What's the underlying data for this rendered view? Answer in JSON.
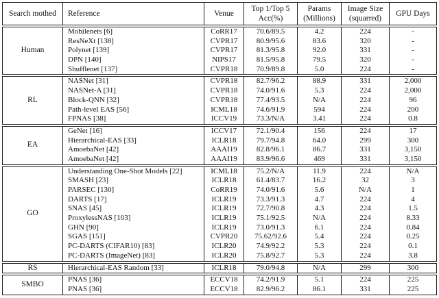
{
  "table": {
    "columns": [
      {
        "label": "Search mothed"
      },
      {
        "label": "Reference"
      },
      {
        "label": "Venue"
      },
      {
        "label": "Top 1/Top 5\nAcc(%)"
      },
      {
        "label": "Params\n(Millions)"
      },
      {
        "label": "Image Size\n(squarred)"
      },
      {
        "label": "GPU Days"
      }
    ],
    "sections": [
      {
        "method": "Human",
        "rows": [
          [
            "Mobilenets [6]",
            "CoRR17",
            "70.6/89.5",
            "4.2",
            "224",
            "-"
          ],
          [
            "ResNeXt [138]",
            "CVPR17",
            "80.9/95.6",
            "83.6",
            "320",
            "-"
          ],
          [
            "Polynet [139]",
            "CVPR17",
            "81.3/95.8",
            "92.0",
            "331",
            "-"
          ],
          [
            "DPN [140]",
            "NIPS17",
            "81.5/95.8",
            "79.5",
            "320",
            "-"
          ],
          [
            "Shufflenet [137]",
            "CVPR18",
            "70.9/89.8",
            "5.0",
            "224",
            "-"
          ]
        ]
      },
      {
        "method": "RL",
        "rows": [
          [
            "NASNet [31]",
            "CVPR18",
            "82.7/96.2",
            "88.9",
            "331",
            "2,000"
          ],
          [
            "NASNet-A [31]",
            "CVPR18",
            "74.0/91.6",
            "5.3",
            "224",
            "2,000"
          ],
          [
            "Block-QNN [32]",
            "CVPR18",
            "77.4/93.5",
            "N/A",
            "224",
            "96"
          ],
          [
            "Path-level EAS [56]",
            "ICML18",
            "74.6/91.9",
            "594",
            "224",
            "200"
          ],
          [
            "FPNAS [38]",
            "ICCV19",
            "73.3/N/A",
            "3.41",
            "224",
            "0.8"
          ]
        ]
      },
      {
        "method": "EA",
        "rows": [
          [
            "GeNet [16]",
            "ICCV17",
            "72.1/90.4",
            "156",
            "224",
            "17"
          ],
          [
            "Hierarchical-EAS [33]",
            "ICLR18",
            "79.7/94.8",
            "64.0",
            "299",
            "300"
          ],
          [
            "AmoebaNet [42]",
            "AAAI19",
            "82.8/96.1",
            "86.7",
            "331",
            "3,150"
          ],
          [
            "AmoebaNet [42]",
            "AAAI19",
            "83.9/96.6",
            "469",
            "331",
            "3,150"
          ]
        ]
      },
      {
        "method": "GO",
        "rows": [
          [
            "Understanding One-Shot Models [22]",
            "ICML18",
            "75.2/N/A",
            "11.9",
            "224",
            "N/A"
          ],
          [
            "SMASH [23]",
            "ICLR18",
            "61.4/83.7",
            "16.2",
            "32",
            "3"
          ],
          [
            "PARSEC [130]",
            "CoRR19",
            "74.0/91.6",
            "5.6",
            "N/A",
            "1"
          ],
          [
            "DARTS [17]",
            "ICLR19",
            "73.3/91.3",
            "4.7",
            "224",
            "4"
          ],
          [
            "SNAS [45]",
            "ICLR19",
            "72.7/90.8",
            "4.3",
            "224",
            "1.5"
          ],
          [
            "ProxylessNAS [103]",
            "ICLR19",
            "75.1/92.5",
            "N/A",
            "224",
            "8.33"
          ],
          [
            "GHN [90]",
            "ICLR19",
            "73.0/91.3",
            "6.1",
            "224",
            "0.84"
          ],
          [
            "SGAS [151]",
            "CVPR20",
            "75.62/92.6",
            "5.4",
            "224",
            "0.25"
          ],
          [
            "PC-DARTS (CIFAR10) [83]",
            "ICLR20",
            "74.9/92.2",
            "5.3",
            "224",
            "0.1"
          ],
          [
            "PC-DARTS (ImageNet) [83]",
            "ICLR20",
            "75.8/92.7",
            "5.3",
            "224",
            "3.8"
          ]
        ]
      },
      {
        "method": "RS",
        "rows": [
          [
            "Hierarchical-EAS Random [33]",
            "ICLR18",
            "79.0/94.8",
            "N/A",
            "299",
            "300"
          ]
        ]
      },
      {
        "method": "SMBO",
        "rows": [
          [
            "PNAS [36]",
            "ECCV18",
            "74.2/91.9",
            "5.1",
            "224",
            "225"
          ],
          [
            "PNAS [36]",
            "ECCV18",
            "82.9/96.2",
            "86.1",
            "331",
            "225"
          ]
        ]
      }
    ]
  },
  "colors": {
    "border": "#1c1c1c",
    "text": "#111111",
    "background": "#ffffff"
  }
}
